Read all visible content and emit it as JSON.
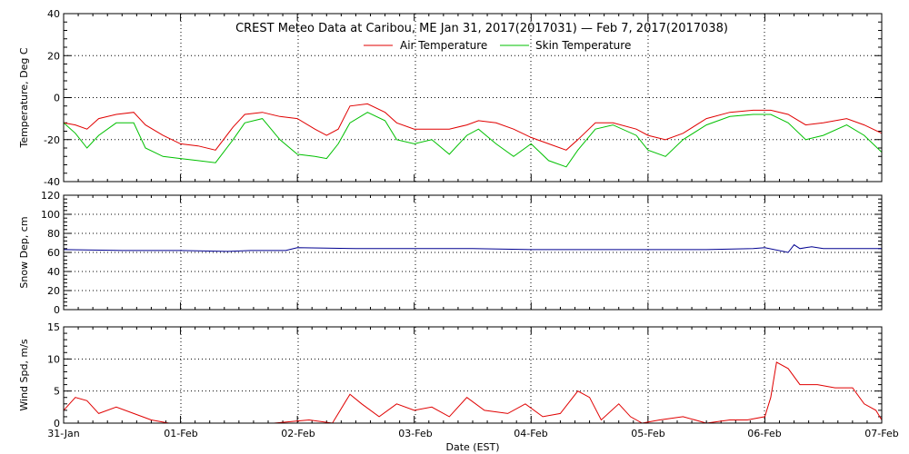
{
  "chart_data": {
    "title": "CREST Meteo Data at Caribou, ME   Jan 31, 2017(2017031) — Feb  7, 2017(2017038)",
    "xlabel": "Date (EST)",
    "x_tick_labels": [
      "31-Jan",
      "01-Feb",
      "02-Feb",
      "03-Feb",
      "04-Feb",
      "05-Feb",
      "06-Feb",
      "07-Feb"
    ],
    "x_range_days": [
      0,
      7
    ],
    "panels": [
      {
        "type": "line",
        "ylabel": "Temperature, Deg C",
        "ylim": [
          -40,
          40
        ],
        "yticks": [
          -40,
          -20,
          0,
          20,
          40
        ],
        "legend_position": "top-center",
        "series": [
          {
            "name": "Air Temperature",
            "color": "#e00000",
            "x": [
              0,
              0.1,
              0.2,
              0.3,
              0.45,
              0.6,
              0.7,
              0.85,
              1.0,
              1.15,
              1.3,
              1.45,
              1.55,
              1.7,
              1.85,
              2.0,
              2.15,
              2.25,
              2.35,
              2.45,
              2.6,
              2.75,
              2.85,
              3.0,
              3.15,
              3.3,
              3.45,
              3.55,
              3.7,
              3.85,
              4.0,
              4.15,
              4.3,
              4.4,
              4.55,
              4.7,
              4.9,
              5.0,
              5.15,
              5.3,
              5.5,
              5.7,
              5.9,
              6.05,
              6.2,
              6.35,
              6.5,
              6.7,
              6.85,
              7.0
            ],
            "values": [
              -12,
              -13,
              -15,
              -10,
              -8,
              -7,
              -13,
              -18,
              -22,
              -23,
              -25,
              -14,
              -8,
              -7,
              -9,
              -10,
              -15,
              -18,
              -15,
              -4,
              -3,
              -7,
              -12,
              -15,
              -15,
              -15,
              -13,
              -11,
              -12,
              -15,
              -19,
              -22,
              -25,
              -20,
              -12,
              -12,
              -15,
              -18,
              -20,
              -17,
              -10,
              -7,
              -6,
              -6,
              -8,
              -13,
              -12,
              -10,
              -13,
              -17
            ]
          },
          {
            "name": "Skin Temperature",
            "color": "#00c000",
            "x": [
              0,
              0.1,
              0.2,
              0.3,
              0.45,
              0.6,
              0.7,
              0.85,
              1.0,
              1.15,
              1.3,
              1.45,
              1.55,
              1.7,
              1.85,
              2.0,
              2.15,
              2.25,
              2.35,
              2.45,
              2.6,
              2.75,
              2.85,
              3.0,
              3.15,
              3.3,
              3.45,
              3.55,
              3.7,
              3.85,
              4.0,
              4.15,
              4.3,
              4.4,
              4.55,
              4.7,
              4.9,
              5.0,
              5.15,
              5.3,
              5.5,
              5.7,
              5.9,
              6.05,
              6.2,
              6.35,
              6.5,
              6.7,
              6.85,
              7.0
            ],
            "values": [
              -12,
              -17,
              -24,
              -18,
              -12,
              -12,
              -24,
              -28,
              -29,
              -30,
              -31,
              -20,
              -12,
              -10,
              -20,
              -27,
              -28,
              -29,
              -22,
              -12,
              -7,
              -11,
              -20,
              -22,
              -20,
              -27,
              -18,
              -15,
              -22,
              -28,
              -22,
              -30,
              -33,
              -25,
              -15,
              -13,
              -18,
              -25,
              -28,
              -20,
              -13,
              -9,
              -8,
              -8,
              -12,
              -20,
              -18,
              -13,
              -18,
              -26
            ]
          }
        ]
      },
      {
        "type": "line",
        "ylabel": "Snow Dep, cm",
        "ylim": [
          0,
          120
        ],
        "yticks": [
          0,
          20,
          40,
          60,
          80,
          100,
          120
        ],
        "series": [
          {
            "color": "#000090",
            "x": [
              0,
              0.5,
              1.0,
              1.4,
              1.6,
              1.9,
              2.0,
              2.5,
              3.0,
              3.5,
              4.0,
              4.5,
              5.0,
              5.5,
              5.9,
              6.0,
              6.2,
              6.25,
              6.3,
              6.4,
              6.5,
              7.0
            ],
            "values": [
              63,
              62,
              62,
              61,
              62,
              62,
              65,
              64,
              64,
              64,
              63,
              63,
              63,
              63,
              64,
              65,
              60,
              68,
              64,
              66,
              64,
              64
            ]
          }
        ]
      },
      {
        "type": "line",
        "ylabel": "Wind Spd, m/s",
        "ylim": [
          0,
          15
        ],
        "yticks": [
          0,
          5,
          10,
          15
        ],
        "series": [
          {
            "color": "#e00000",
            "x": [
              0,
              0.1,
              0.2,
              0.3,
              0.45,
              0.6,
              0.75,
              0.9,
              1.2,
              1.5,
              1.8,
              2.1,
              2.3,
              2.45,
              2.55,
              2.7,
              2.85,
              3.0,
              3.15,
              3.3,
              3.45,
              3.6,
              3.8,
              3.95,
              4.1,
              4.25,
              4.4,
              4.5,
              4.6,
              4.75,
              4.85,
              4.95,
              5.1,
              5.3,
              5.5,
              5.7,
              5.85,
              6.0,
              6.05,
              6.1,
              6.2,
              6.3,
              6.45,
              6.6,
              6.75,
              6.85,
              6.95,
              7.0
            ],
            "values": [
              2,
              4,
              3.5,
              1.5,
              2.5,
              1.5,
              0.5,
              0,
              0,
              0,
              0,
              0.5,
              0,
              4.5,
              3,
              1,
              3,
              2,
              2.5,
              1,
              4,
              2,
              1.5,
              3,
              1,
              1.5,
              5,
              4,
              0.5,
              3,
              1,
              0,
              0.5,
              1,
              0,
              0.5,
              0.5,
              1,
              4,
              9.5,
              8.5,
              6,
              6,
              5.5,
              5.5,
              3,
              2,
              0.5
            ]
          }
        ]
      }
    ]
  }
}
